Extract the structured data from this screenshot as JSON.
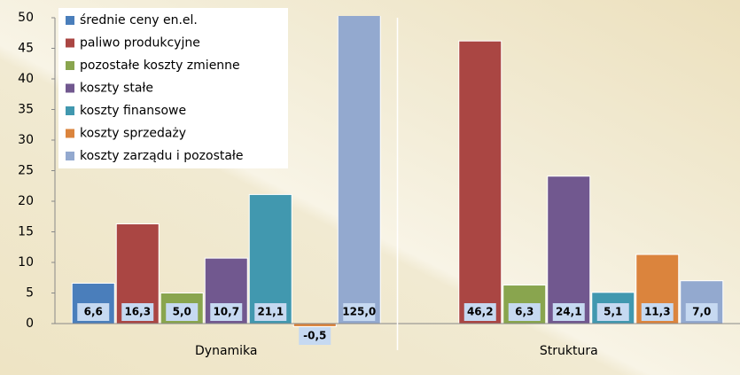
{
  "chart_data": {
    "type": "bar",
    "categories": [
      "Dynamika",
      "Struktura"
    ],
    "series": [
      {
        "name": "średnie ceny en.el.",
        "color": "#4a7ebb",
        "values": [
          6.6,
          null
        ],
        "value_labels": [
          "6,6",
          null
        ]
      },
      {
        "name": "paliwo produkcyjne",
        "color": "#aa4643",
        "values": [
          16.3,
          46.2
        ],
        "value_labels": [
          "16,3",
          "46,2"
        ]
      },
      {
        "name": "pozostałe koszty zmienne",
        "color": "#89a54e",
        "values": [
          5.0,
          6.3
        ],
        "value_labels": [
          "5,0",
          "6,3"
        ]
      },
      {
        "name": "koszty stałe",
        "color": "#71588f",
        "values": [
          10.7,
          24.1
        ],
        "value_labels": [
          "10,7",
          "24,1"
        ]
      },
      {
        "name": "koszty finansowe",
        "color": "#4198af",
        "values": [
          21.1,
          5.1
        ],
        "value_labels": [
          "21,1",
          "5,1"
        ]
      },
      {
        "name": "koszty sprzedaży",
        "color": "#db843d",
        "values": [
          -0.5,
          11.3
        ],
        "value_labels": [
          "-0,5",
          "11,3"
        ]
      },
      {
        "name": "koszty zarządu i pozostałe",
        "color": "#93a9cf",
        "values": [
          125.0,
          7.0
        ],
        "value_labels": [
          "125,0",
          "7,0"
        ]
      }
    ],
    "ylim": [
      0,
      50
    ],
    "yticks": [
      0,
      5,
      10,
      15,
      20,
      25,
      30,
      35,
      40,
      45,
      50
    ],
    "legend": "top-left"
  }
}
